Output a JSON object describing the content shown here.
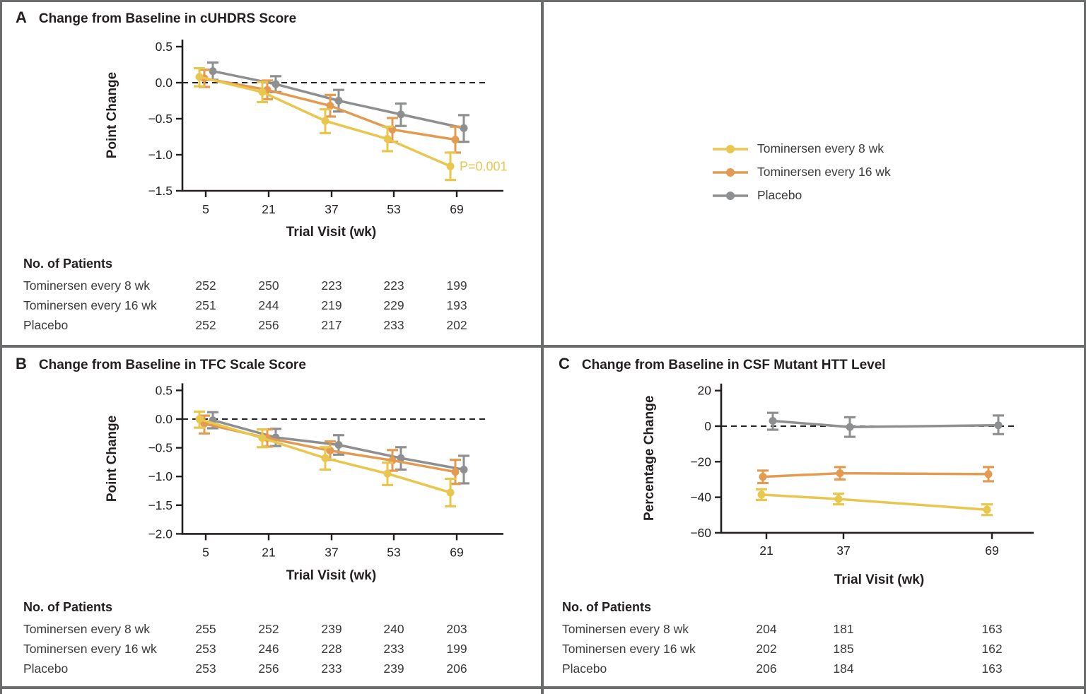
{
  "panels": [
    {
      "label": "A",
      "title": "Change from Baseline in cUHDRS Score",
      "patients": {
        "header": "No. of Patients",
        "rows": [
          {
            "label": "Tominersen every 8 wk",
            "values": [
              "252",
              "250",
              "223",
              "223",
              "199"
            ]
          },
          {
            "label": "Tominersen every 16 wk",
            "values": [
              "251",
              "244",
              "219",
              "229",
              "193"
            ]
          },
          {
            "label": "Placebo",
            "values": [
              "252",
              "256",
              "217",
              "233",
              "202"
            ]
          }
        ]
      }
    },
    {
      "label": "B",
      "title": "Change from Baseline in TFC Scale Score",
      "patients": {
        "header": "No. of Patients",
        "rows": [
          {
            "label": "Tominersen every 8 wk",
            "values": [
              "255",
              "252",
              "239",
              "240",
              "203"
            ]
          },
          {
            "label": "Tominersen every 16 wk",
            "values": [
              "253",
              "246",
              "228",
              "233",
              "199"
            ]
          },
          {
            "label": "Placebo",
            "values": [
              "253",
              "256",
              "233",
              "239",
              "206"
            ]
          }
        ]
      }
    },
    {
      "label": "C",
      "title": "Change from Baseline in CSF Mutant HTT Level",
      "patients": {
        "header": "No. of Patients",
        "rows": [
          {
            "label": "Tominersen every 8 wk",
            "values": [
              "204",
              "181",
              "163"
            ]
          },
          {
            "label": "Tominersen every 16 wk",
            "values": [
              "202",
              "185",
              "162"
            ]
          },
          {
            "label": "Placebo",
            "values": [
              "206",
              "184",
              "163"
            ]
          }
        ]
      }
    }
  ],
  "legend": {
    "items": [
      {
        "label": "Tominersen every 8 wk",
        "color": "#e9c64d"
      },
      {
        "label": "Tominersen every 16 wk",
        "color": "#e39b51"
      },
      {
        "label": "Placebo",
        "color": "#8e8f91"
      }
    ]
  },
  "colors": {
    "tominersen_8wk": "#e9c64d",
    "tominersen_16wk": "#e39b51",
    "placebo": "#8e8f91",
    "axis": "#231f20",
    "divider": "#6b6c6e"
  },
  "chart_data": [
    {
      "type": "line",
      "title": "Change from Baseline in cUHDRS Score",
      "xlabel": "Trial Visit (wk)",
      "ylabel": "Point Change",
      "x": [
        5,
        21,
        37,
        53,
        69
      ],
      "ylim": [
        -1.5,
        0.5
      ],
      "yticks": [
        0.5,
        0.0,
        -0.5,
        -1.0,
        -1.5
      ],
      "zero_dashed_line": true,
      "legend_position": "outside-right",
      "annotation": {
        "text": "P=0.001",
        "series": "Tominersen every 8 wk",
        "x": 69,
        "y": -1.16
      },
      "series": [
        {
          "name": "Tominersen every 8 wk",
          "color": "#e9c64d",
          "values": [
            0.08,
            -0.13,
            -0.53,
            -0.78,
            -1.16
          ],
          "ci": [
            [
              -0.05,
              0.2
            ],
            [
              -0.27,
              0.01
            ],
            [
              -0.7,
              -0.37
            ],
            [
              -0.95,
              -0.61
            ],
            [
              -1.35,
              -0.97
            ]
          ]
        },
        {
          "name": "Tominersen every 16 wk",
          "color": "#e39b51",
          "values": [
            0.06,
            -0.1,
            -0.32,
            -0.65,
            -0.79
          ],
          "ci": [
            [
              -0.06,
              0.18
            ],
            [
              -0.23,
              0.03
            ],
            [
              -0.47,
              -0.17
            ],
            [
              -0.82,
              -0.49
            ],
            [
              -0.97,
              -0.61
            ]
          ]
        },
        {
          "name": "Placebo",
          "color": "#8e8f91",
          "values": [
            0.16,
            -0.02,
            -0.25,
            -0.44,
            -0.63
          ],
          "ci": [
            [
              0.04,
              0.28
            ],
            [
              -0.13,
              0.09
            ],
            [
              -0.4,
              -0.1
            ],
            [
              -0.6,
              -0.29
            ],
            [
              -0.82,
              -0.45
            ]
          ]
        }
      ]
    },
    {
      "type": "line",
      "title": "Change from Baseline in TFC Scale Score",
      "xlabel": "Trial Visit (wk)",
      "ylabel": "Point Change",
      "x": [
        5,
        21,
        37,
        53,
        69
      ],
      "ylim": [
        -2.0,
        0.5
      ],
      "yticks": [
        0.5,
        0.0,
        -0.5,
        -1.0,
        -1.5,
        -2.0
      ],
      "zero_dashed_line": true,
      "series": [
        {
          "name": "Tominersen every 8 wk",
          "color": "#e9c64d",
          "values": [
            0.0,
            -0.33,
            -0.68,
            -0.95,
            -1.28
          ],
          "ci": [
            [
              -0.15,
              0.13
            ],
            [
              -0.49,
              -0.18
            ],
            [
              -0.88,
              -0.49
            ],
            [
              -1.15,
              -0.76
            ],
            [
              -1.52,
              -1.04
            ]
          ]
        },
        {
          "name": "Tominersen every 16 wk",
          "color": "#e39b51",
          "values": [
            -0.08,
            -0.33,
            -0.55,
            -0.72,
            -0.92
          ],
          "ci": [
            [
              -0.25,
              0.06
            ],
            [
              -0.48,
              -0.18
            ],
            [
              -0.71,
              -0.39
            ],
            [
              -0.9,
              -0.54
            ],
            [
              -1.13,
              -0.71
            ]
          ]
        },
        {
          "name": "Placebo",
          "color": "#8e8f91",
          "values": [
            -0.02,
            -0.32,
            -0.45,
            -0.68,
            -0.88
          ],
          "ci": [
            [
              -0.16,
              0.12
            ],
            [
              -0.47,
              -0.17
            ],
            [
              -0.62,
              -0.28
            ],
            [
              -0.88,
              -0.49
            ],
            [
              -1.12,
              -0.64
            ]
          ]
        }
      ]
    },
    {
      "type": "line",
      "title": "Change from Baseline in CSF Mutant HTT Level",
      "xlabel": "Trial Visit (wk)",
      "ylabel": "Percentage Change",
      "x": [
        21,
        37,
        69
      ],
      "ylim": [
        -60,
        20
      ],
      "yticks": [
        20,
        0,
        -20,
        -40,
        -60
      ],
      "zero_dashed_line": true,
      "series": [
        {
          "name": "Tominersen every 8 wk",
          "color": "#e9c64d",
          "values": [
            -38.5,
            -41,
            -47
          ],
          "ci": [
            [
              -41.5,
              -35.5
            ],
            [
              -44,
              -38
            ],
            [
              -50,
              -44
            ]
          ]
        },
        {
          "name": "Tominersen every 16 wk",
          "color": "#e39b51",
          "values": [
            -28.5,
            -26.5,
            -27
          ],
          "ci": [
            [
              -32,
              -25
            ],
            [
              -30,
              -23
            ],
            [
              -31,
              -23
            ]
          ]
        },
        {
          "name": "Placebo",
          "color": "#8e8f91",
          "values": [
            3,
            -0.5,
            0.5
          ],
          "ci": [
            [
              -2,
              7.5
            ],
            [
              -6,
              5
            ],
            [
              -4.5,
              6
            ]
          ]
        }
      ]
    }
  ]
}
